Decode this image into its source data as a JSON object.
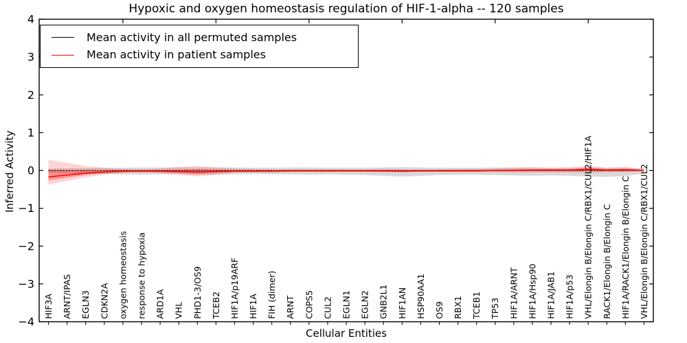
{
  "chart_data": {
    "type": "line",
    "title": "Hypoxic and oxygen homeostasis regulation of HIF-1-alpha -- 120 samples",
    "xlabel": "Cellular Entities",
    "ylabel": "Inferred Activity",
    "ylim": [
      -4,
      4
    ],
    "yticks": [
      "4",
      "3",
      "2",
      "1",
      "0",
      "−1",
      "−2",
      "−3",
      "−4"
    ],
    "grid": false,
    "legend_position": "upper left",
    "categories": [
      "HIF3A",
      "ARNT/IPAS",
      "EGLN3",
      "CDKN2A",
      "oxygen homeostasis",
      "response to hypoxia",
      "ARD1A",
      "VHL",
      "PHD1-3/OS9",
      "TCEB2",
      "HIF1A/p19ARF",
      "HIF1A",
      "FIH (dimer)",
      "ARNT",
      "COPS5",
      "CUL2",
      "EGLN1",
      "EGLN2",
      "GNB2L1",
      "HIF1AN",
      "HSP90AA1",
      "OS9",
      "RBX1",
      "TCEB1",
      "TP53",
      "HIF1A/ARNT",
      "HIF1A/Hsp90",
      "HIF1A/JAB1",
      "HIF1A/p53",
      "VHL/Elongin B/Elongin C/RBX1/CUL2/HIF1A",
      "RACK1/Elongin B/Elongin C",
      "HIF1A/RACK1/Elongin B/Elongin C",
      "VHL/Elongin B/Elongin C/RBX1/CUL2"
    ],
    "series": [
      {
        "name": "Mean activity in all permuted samples",
        "color": "#000000",
        "linestyle": "dotted",
        "values": [
          0,
          0,
          0,
          0,
          0,
          0,
          0,
          0,
          0,
          0,
          0,
          0,
          0,
          0,
          0,
          0,
          0,
          0,
          0,
          0,
          0,
          0,
          0,
          0,
          0,
          0,
          0,
          0,
          0,
          0,
          0,
          0,
          0
        ]
      },
      {
        "name": "Mean activity in patient samples",
        "color": "#ff0000",
        "linestyle": "solid",
        "values": [
          -0.17,
          -0.12,
          -0.07,
          -0.04,
          -0.02,
          -0.02,
          -0.02,
          -0.03,
          -0.04,
          -0.03,
          -0.02,
          -0.02,
          -0.02,
          -0.01,
          -0.01,
          -0.01,
          -0.01,
          -0.01,
          -0.01,
          -0.02,
          -0.01,
          -0.01,
          -0.01,
          -0.01,
          0,
          0,
          0.01,
          0.01,
          0.01,
          0.03,
          0.01,
          0.02,
          0
        ]
      }
    ],
    "bands": [
      {
        "name": "permuted samples spread",
        "color": "rgba(128,128,128,0.30)",
        "upper": [
          0.05,
          0.06,
          0.06,
          0.07,
          0.07,
          0.08,
          0.08,
          0.08,
          0.08,
          0.08,
          0.08,
          0.07,
          0.07,
          0.08,
          0.08,
          0.07,
          0.07,
          0.07,
          0.08,
          0.09,
          0.08,
          0.07,
          0.07,
          0.07,
          0.08,
          0.08,
          0.08,
          0.07,
          0.07,
          0.08,
          0.07,
          0.07,
          0.05
        ],
        "lower": [
          -0.07,
          -0.08,
          -0.09,
          -0.09,
          -0.1,
          -0.11,
          -0.1,
          -0.1,
          -0.11,
          -0.11,
          -0.1,
          -0.09,
          -0.1,
          -0.1,
          -0.11,
          -0.1,
          -0.11,
          -0.12,
          -0.14,
          -0.16,
          -0.14,
          -0.12,
          -0.11,
          -0.11,
          -0.12,
          -0.13,
          -0.14,
          -0.13,
          -0.14,
          -0.16,
          -0.17,
          -0.15,
          -0.08
        ]
      },
      {
        "name": "patient samples outer spread",
        "color": "rgba(255,0,0,0.17)",
        "upper": [
          0.28,
          0.2,
          0.12,
          0.07,
          0.04,
          0.03,
          0.05,
          0.09,
          0.12,
          0.08,
          0.05,
          0.04,
          0.03,
          0.03,
          0.03,
          0.03,
          0.03,
          0.03,
          0.04,
          0.03,
          0.03,
          0.03,
          0.04,
          0.04,
          0.05,
          0.07,
          0.08,
          0.07,
          0.08,
          0.13,
          0.07,
          0.1,
          0.03
        ],
        "lower": [
          -0.37,
          -0.28,
          -0.18,
          -0.11,
          -0.07,
          -0.05,
          -0.07,
          -0.11,
          -0.16,
          -0.11,
          -0.06,
          -0.05,
          -0.05,
          -0.04,
          -0.04,
          -0.04,
          -0.04,
          -0.04,
          -0.05,
          -0.05,
          -0.04,
          -0.04,
          -0.04,
          -0.04,
          -0.04,
          -0.05,
          -0.05,
          -0.05,
          -0.05,
          -0.06,
          -0.05,
          -0.05,
          -0.03
        ]
      },
      {
        "name": "patient samples inner spread",
        "color": "rgba(255,0,0,0.30)",
        "upper": [
          0.02,
          0.01,
          0.01,
          0.01,
          0.01,
          0,
          0.01,
          0.02,
          0.03,
          0.02,
          0.01,
          0.01,
          0,
          0.01,
          0.01,
          0.01,
          0.01,
          0.01,
          0.01,
          0,
          0.01,
          0.01,
          0.01,
          0.01,
          0.02,
          0.03,
          0.03,
          0.03,
          0.03,
          0.06,
          0.03,
          0.04,
          0.01
        ],
        "lower": [
          -0.26,
          -0.19,
          -0.12,
          -0.07,
          -0.04,
          -0.03,
          -0.04,
          -0.06,
          -0.09,
          -0.06,
          -0.03,
          -0.03,
          -0.03,
          -0.02,
          -0.02,
          -0.02,
          -0.02,
          -0.02,
          -0.03,
          -0.03,
          -0.02,
          -0.02,
          -0.02,
          -0.02,
          -0.02,
          -0.02,
          -0.02,
          -0.02,
          -0.02,
          -0.02,
          -0.02,
          -0.02,
          -0.01
        ]
      }
    ]
  }
}
